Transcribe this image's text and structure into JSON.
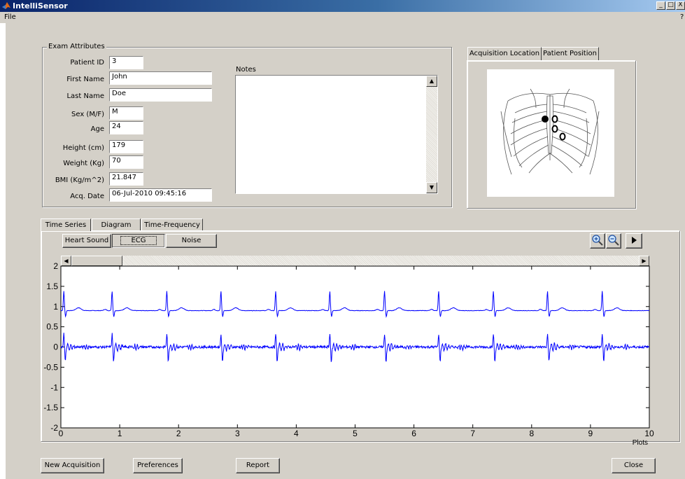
{
  "window": {
    "title": "IntelliSensor",
    "controls": [
      "_",
      "□",
      "X"
    ]
  },
  "menu": {
    "file": "File",
    "help_char": "?"
  },
  "exam": {
    "legend": "Exam Attributes",
    "fields": [
      {
        "label": "Patient ID",
        "value": "3"
      },
      {
        "label": "First Name",
        "value": "John"
      },
      {
        "label": "Last Name",
        "value": "Doe"
      },
      {
        "label": "Sex (M/F)",
        "value": "M"
      },
      {
        "label": "Age",
        "value": "24"
      },
      {
        "label": "Height (cm)",
        "value": "179"
      },
      {
        "label": "Weight (Kg)",
        "value": "70"
      },
      {
        "label": "BMI (Kg/m^2)",
        "value": "21.847"
      },
      {
        "label": "Acq. Date",
        "value": "06-Jul-2010 09:45:16"
      }
    ],
    "notes_label": "Notes",
    "notes_value": ""
  },
  "location": {
    "tabs": [
      "Acquisition Location",
      "Patient Position"
    ],
    "active_tab": "Acquisition Location"
  },
  "main_tabs": [
    "Time Series",
    "Diagram",
    "Time-Frequency"
  ],
  "signal_tabs": [
    "Heart Sound",
    "ECG",
    "Noise"
  ],
  "toolbar": {
    "zoom_in": "zoom-in-icon",
    "zoom_out": "zoom-out-icon",
    "play": "play-icon"
  },
  "chart_data": {
    "type": "line",
    "title": "",
    "xlabel": "Plots",
    "ylabel": "",
    "xlim": [
      0,
      10
    ],
    "ylim": [
      -2,
      2
    ],
    "x_ticks": [
      "0",
      "1",
      "2",
      "3",
      "4",
      "5",
      "6",
      "7",
      "8",
      "9",
      "10"
    ],
    "y_ticks": [
      "2",
      "1.5",
      "1",
      "0.5",
      "0",
      "-0.5",
      "-1",
      "-1.5",
      "-2"
    ],
    "series": [
      {
        "baseline": 0.9,
        "beat_times": [
          0.05,
          0.87,
          1.8,
          2.72,
          3.65,
          4.57,
          5.5,
          6.42,
          7.35,
          8.27,
          9.2
        ],
        "peak": 1.38,
        "trough": 0.75,
        "color": "#0000ff"
      },
      {
        "baseline": 0.0,
        "beat_times": [
          0.05,
          0.87,
          1.8,
          2.72,
          3.65,
          4.57,
          5.5,
          6.42,
          7.35,
          8.27,
          9.2
        ],
        "peak": 0.33,
        "trough": -0.38,
        "color": "#0000ff"
      }
    ],
    "grid": false
  },
  "buttons": {
    "new_acquisition": "New Acquisition",
    "preferences": "Preferences",
    "report": "Report",
    "close": "Close"
  }
}
